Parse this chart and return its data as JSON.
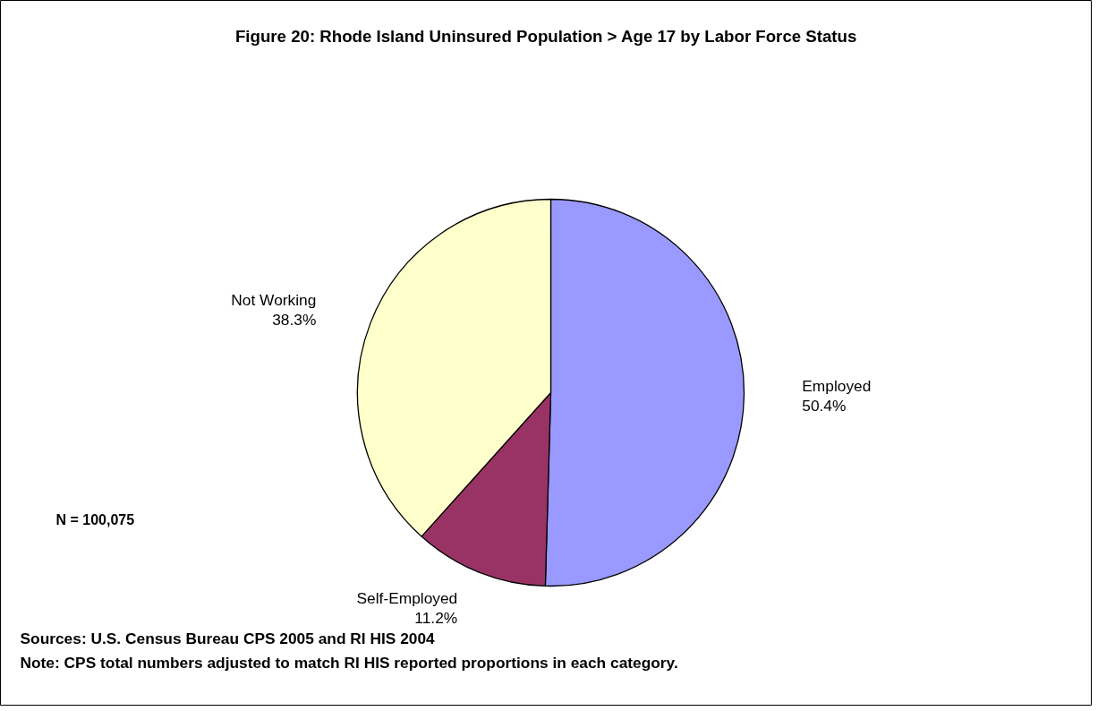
{
  "chart_data": {
    "type": "pie",
    "title": "Figure 20: Rhode Island Uninsured Population > Age 17 by Labor Force Status",
    "categories": [
      "Employed",
      "Self-Employed",
      "Not Working"
    ],
    "values": [
      50.4,
      11.2,
      38.3
    ],
    "value_labels": [
      "50.4%",
      "11.2%",
      "38.3%"
    ],
    "colors": [
      "#9999ff",
      "#993366",
      "#ffffcc"
    ],
    "annotations": [
      "N = 100,075",
      "Sources: U.S. Census Bureau CPS 2005 and RI HIS 2004",
      "Note: CPS total numbers adjusted to match RI HIS reported proportions in each category."
    ]
  }
}
